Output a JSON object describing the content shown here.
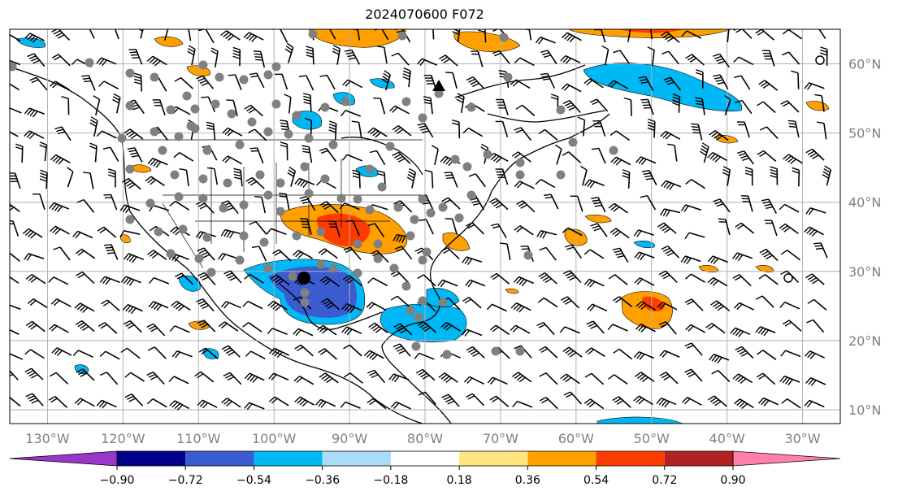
{
  "title": "2024070600 F072",
  "map": {
    "lon_range": [
      -135,
      -25
    ],
    "lat_range": [
      8,
      65
    ],
    "lat_labels": [
      "10°N",
      "20°N",
      "30°N",
      "40°N",
      "50°N",
      "60°N"
    ],
    "lat_values": [
      10,
      20,
      30,
      40,
      50,
      60
    ],
    "lon_labels": [
      "130°W",
      "120°W",
      "110°W",
      "100°W",
      "90°W",
      "80°W",
      "70°W",
      "60°W",
      "50°W",
      "40°W",
      "30°W"
    ],
    "lon_values": [
      -130,
      -120,
      -110,
      -100,
      -90,
      -80,
      -70,
      -60,
      -50,
      -40,
      -30
    ],
    "grid": true,
    "colors": {
      "land_line": "#000000",
      "grid": "#b0b0b0",
      "station": "#808080"
    }
  },
  "colorbar": {
    "ticks": [
      "−0.90",
      "−0.72",
      "−0.54",
      "−0.36",
      "−0.18",
      "0.18",
      "0.36",
      "0.54",
      "0.72",
      "0.90"
    ],
    "colors": [
      "#9a36c9",
      "#00008a",
      "#3b5bd0",
      "#00b8f5",
      "#a8dcf7",
      "#ffffff",
      "#ffe680",
      "#ffa000",
      "#ff3c00",
      "#b22222",
      "#ff80ac"
    ],
    "extend": "both"
  }
}
